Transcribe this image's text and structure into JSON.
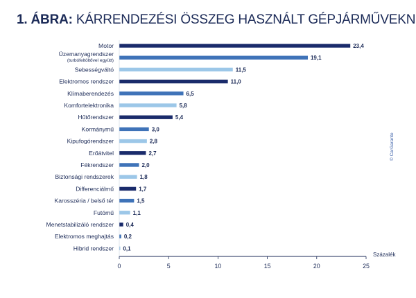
{
  "title": {
    "prefix": "1. ÁBRA:",
    "text": "KÁRRENDEZÉSI ÖSSZEG HASZNÁLT GÉPJÁRMŰVEKNÉL"
  },
  "credit": "© CarGarante",
  "colors": {
    "dark": "#1a2b6b",
    "medium": "#3f73b8",
    "light": "#9cc7e8",
    "text": "#1b2a57"
  },
  "chart_data": {
    "type": "bar",
    "orientation": "horizontal",
    "unit_label": "Százalék",
    "xlim": [
      0,
      25
    ],
    "xticks": [
      0,
      5,
      10,
      15,
      20,
      25
    ],
    "categories": [
      {
        "label": "Motor",
        "value": 23.4,
        "value_label": "23,4",
        "shade": "dark"
      },
      {
        "label": "Üzemanyagrendszer",
        "sublabel": "(turbófeltöltővel együtt)",
        "value": 19.1,
        "value_label": "19,1",
        "shade": "medium"
      },
      {
        "label": "Sebességváltó",
        "value": 11.5,
        "value_label": "11,5",
        "shade": "light"
      },
      {
        "label": "Elektromos rendszer",
        "value": 11.0,
        "value_label": "11,0",
        "shade": "dark"
      },
      {
        "label": "Klímaberendezés",
        "value": 6.5,
        "value_label": "6,5",
        "shade": "medium"
      },
      {
        "label": "Komfortelektronika",
        "value": 5.8,
        "value_label": "5,8",
        "shade": "light"
      },
      {
        "label": "Hűtőrendszer",
        "value": 5.4,
        "value_label": "5,4",
        "shade": "dark"
      },
      {
        "label": "Kormánymű",
        "value": 3.0,
        "value_label": "3,0",
        "shade": "medium"
      },
      {
        "label": "Kipufogórendszer",
        "value": 2.8,
        "value_label": "2,8",
        "shade": "light"
      },
      {
        "label": "Erőátvitel",
        "value": 2.7,
        "value_label": "2,7",
        "shade": "dark"
      },
      {
        "label": "Fékrendszer",
        "value": 2.0,
        "value_label": "2,0",
        "shade": "medium"
      },
      {
        "label": "Biztonsági rendszerek",
        "value": 1.8,
        "value_label": "1,8",
        "shade": "light"
      },
      {
        "label": "Differenciálmű",
        "value": 1.7,
        "value_label": "1,7",
        "shade": "dark"
      },
      {
        "label": "Karosszéria / belső tér",
        "value": 1.5,
        "value_label": "1,5",
        "shade": "medium"
      },
      {
        "label": "Futómű",
        "value": 1.1,
        "value_label": "1,1",
        "shade": "light"
      },
      {
        "label": "Menetstabilizáló rendszer",
        "value": 0.4,
        "value_label": "0,4",
        "shade": "dark"
      },
      {
        "label": "Elektromos meghajtás",
        "value": 0.2,
        "value_label": "0,2",
        "shade": "medium"
      },
      {
        "label": "Hibrid rendszer",
        "value": 0.1,
        "value_label": "0,1",
        "shade": "light"
      }
    ]
  }
}
